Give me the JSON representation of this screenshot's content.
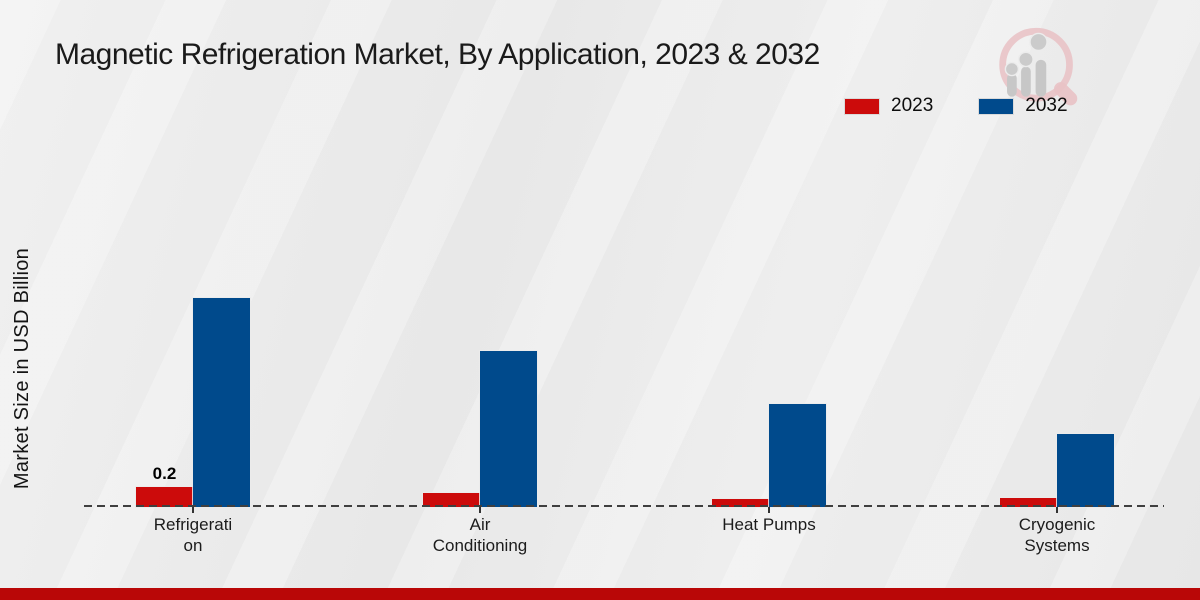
{
  "title": "Magnetic Refrigeration Market, By Application, 2023 & 2032",
  "ylabel": "Market Size in USD Billion",
  "legend": {
    "position": "top-right",
    "items": [
      {
        "label": "2023",
        "color": "#cc0b0b"
      },
      {
        "label": "2032",
        "color": "#004a8c"
      }
    ]
  },
  "icons": {
    "logo": "magnifier-bar-chart-watermark-icon"
  },
  "footer": {
    "band_color": "#b90707"
  },
  "chart_data": {
    "type": "bar",
    "title": "Magnetic Refrigeration Market, By Application, 2023 & 2032",
    "xlabel": "",
    "ylabel": "Market Size in USD Billion",
    "units": "USD Billion",
    "categories": [
      "Refrigeration",
      "Air Conditioning",
      "Heat Pumps",
      "Cryogenic Systems"
    ],
    "category_label_lines": [
      [
        "Refrigerati",
        "on"
      ],
      [
        "Air",
        "Conditioning"
      ],
      [
        "Heat Pumps"
      ],
      [
        "Cryogenic",
        "Systems"
      ]
    ],
    "series": [
      {
        "name": "2023",
        "color": "#cc0b0b",
        "values": [
          0.2,
          0.14,
          0.08,
          0.09
        ],
        "labels": [
          "0.2",
          "",
          "",
          ""
        ]
      },
      {
        "name": "2032",
        "color": "#004a8c",
        "values": [
          2.09,
          1.56,
          1.03,
          0.73
        ],
        "labels": [
          "",
          "",
          "",
          ""
        ]
      }
    ],
    "ylim": [
      0,
      2.3
    ],
    "y_axis_ticks_visible": false,
    "grid": false,
    "baseline_style": "dashed",
    "legend_position": "top-right"
  }
}
